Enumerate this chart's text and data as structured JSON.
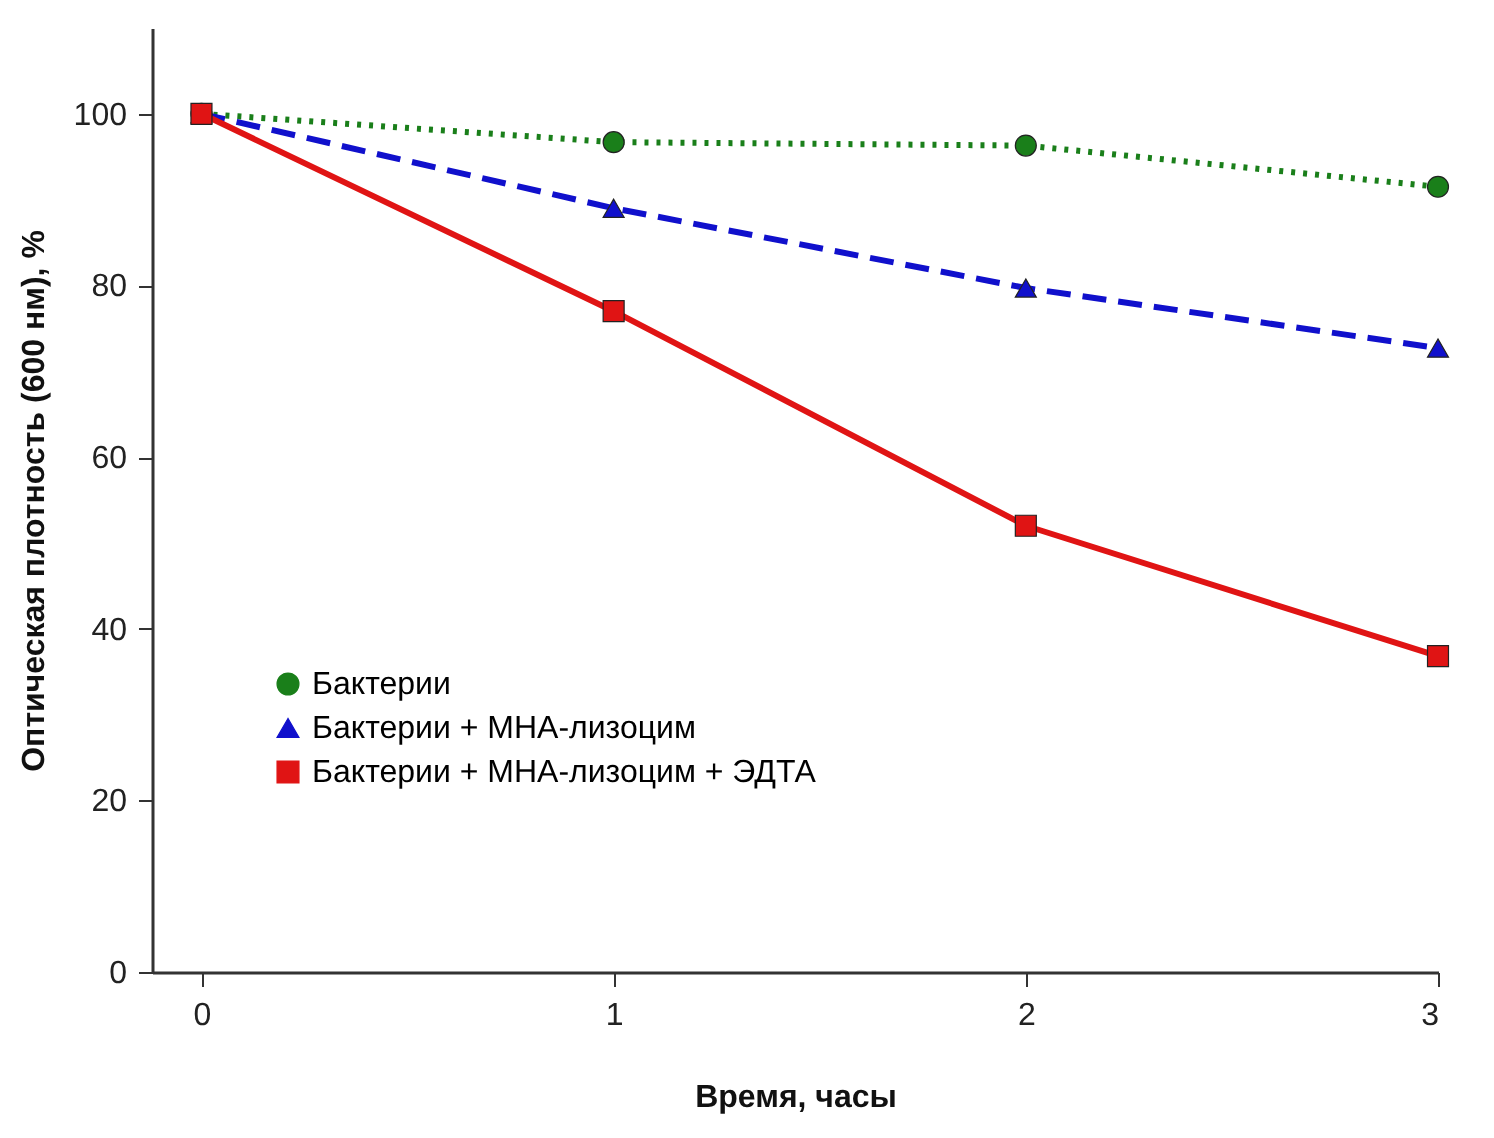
{
  "chart_data": {
    "type": "line",
    "xlabel": "Время, часы",
    "ylabel": "Оптическая плотность (600 нм), %",
    "x": [
      0,
      1,
      2,
      3
    ],
    "xlim": [
      -0.12,
      3
    ],
    "xticks": [
      0,
      1,
      2,
      3
    ],
    "ylim": [
      0,
      110
    ],
    "yticks": [
      0,
      20,
      40,
      60,
      80,
      100
    ],
    "grid": false,
    "legend": "bottom left",
    "series": [
      {
        "name": "Бактерии",
        "color": "#1a7f1a",
        "marker": "circle",
        "line_style": "dotted",
        "values": [
          100,
          96.7,
          96.3,
          91.5
        ]
      },
      {
        "name": "Бактерии + МНА-лизоцим",
        "color": "#1010cc",
        "marker": "triangle",
        "line_style": "dashed",
        "values": [
          100,
          89,
          79.7,
          72.7
        ]
      },
      {
        "name": "Бактерии + МНА-лизоцим + ЭДТА",
        "color": "#e01414",
        "marker": "square",
        "line_style": "solid",
        "values": [
          100,
          77,
          52,
          36.8
        ]
      }
    ]
  }
}
